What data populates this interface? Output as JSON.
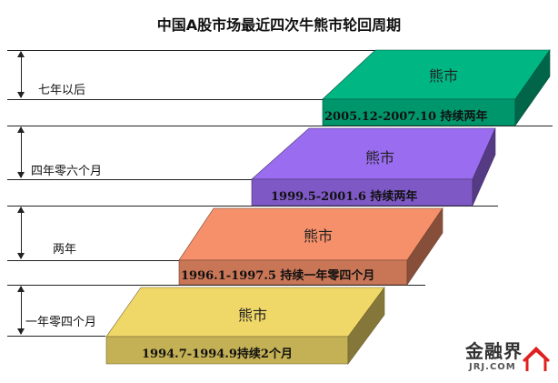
{
  "title": "中国A股市场最近四次牛熊市轮回周期",
  "gaps": [
    {
      "label": "七年以后"
    },
    {
      "label": "四年零六个月"
    },
    {
      "label": "两年"
    },
    {
      "label": "一年零四个月"
    }
  ],
  "bears": [
    {
      "label": "熊市",
      "period": "2005.12-2007.10  持续两年",
      "color": "#00b784"
    },
    {
      "label": "熊市",
      "period": "1999.5-2001.6 持续两年",
      "color": "#9a6cf0"
    },
    {
      "label": "熊市",
      "period": "1996.1-1997.5 持续一年零四个月",
      "color": "#f5906a"
    },
    {
      "label": "熊市",
      "period": "1994.7-1994.9持续2个月",
      "color": "#f0d868"
    }
  ],
  "logo": {
    "text_cn": "金融界",
    "text_en": "JRJ.COM"
  }
}
